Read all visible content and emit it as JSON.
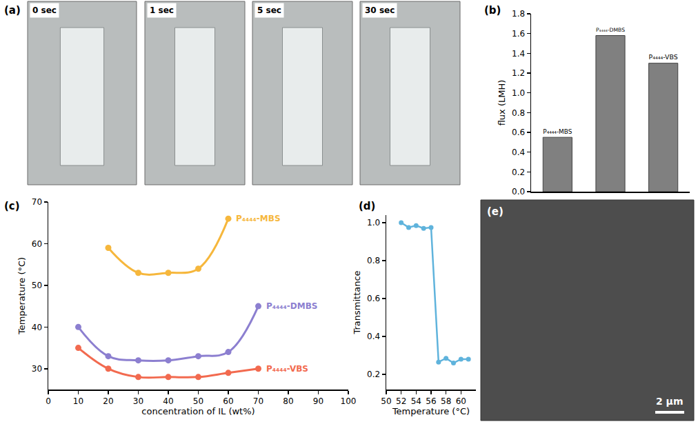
{
  "photos": {
    "panel": "(a)",
    "frames": [
      "0 sec",
      "1 sec",
      "5 sec",
      "30 sec"
    ]
  },
  "chart_data": [
    {
      "panel": "(b)",
      "type": "bar",
      "categories": [
        "P₄₄₄₄-MBS",
        "P₄₄₄₄-DMBS",
        "P₄₄₄₄-VBS"
      ],
      "values": [
        0.55,
        1.58,
        1.3
      ],
      "color": "#808080",
      "y_label": "flux (LMH)",
      "ylim": [
        0,
        1.8
      ],
      "yticks": [
        {
          "value": 0,
          "label": "0.0"
        },
        0.2,
        0.4,
        0.6,
        0.8,
        {
          "value": 1,
          "label": "1.0"
        },
        1.2,
        1.4,
        1.6,
        1.8
      ],
      "tick_labels": "y",
      "grid": false
    },
    {
      "panel": "(c)",
      "type": "line",
      "x_label": "concentration of IL (wt%)",
      "y_label": "Temperature (°C)",
      "xlim": [
        0,
        100
      ],
      "xticks": [
        0,
        10,
        20,
        30,
        40,
        50,
        60,
        70,
        80,
        90,
        100
      ],
      "ylim": [
        25,
        70
      ],
      "yticks": [
        30,
        40,
        50,
        60,
        70
      ],
      "marker": "circle",
      "line_style": "solid",
      "grid": false,
      "series": [
        {
          "name": "P₄₄₄₄-MBS",
          "color": "#f6b73c",
          "x": [
            20,
            30,
            40,
            50,
            60
          ],
          "values": [
            59,
            53,
            53,
            54,
            66
          ]
        },
        {
          "name": "P₄₄₄₄-DMBS",
          "color": "#8c7fd0",
          "x": [
            10,
            20,
            30,
            40,
            50,
            60,
            70
          ],
          "values": [
            40,
            33,
            32,
            32,
            33,
            34,
            45
          ]
        },
        {
          "name": "P₄₄₄₄-VBS",
          "color": "#f26a4f",
          "x": [
            10,
            20,
            30,
            40,
            50,
            60,
            70
          ],
          "values": [
            35,
            30,
            28,
            28,
            28,
            29,
            30
          ]
        }
      ]
    },
    {
      "panel": "(d)",
      "type": "line",
      "x_label": "Temperature (°C)",
      "y_label": "Transmittance",
      "xlim": [
        50,
        62
      ],
      "xticks": [
        50,
        52,
        54,
        56,
        58,
        60
      ],
      "ylim": [
        0.12,
        1.04
      ],
      "yticks": [
        0.2,
        0.4,
        0.6,
        0.8,
        {
          "value": 1,
          "label": "1.0"
        }
      ],
      "marker": "circle",
      "line_style": "solid",
      "color": "#5fb3dc",
      "grid": false,
      "x": [
        52,
        53,
        54,
        55,
        56,
        57,
        58,
        59,
        60,
        61
      ],
      "values": [
        1.0,
        0.975,
        0.985,
        0.97,
        0.975,
        0.265,
        0.285,
        0.26,
        0.28,
        0.28
      ]
    }
  ],
  "micrograph": {
    "panel": "(e)",
    "scale_bar": "2 μm"
  }
}
